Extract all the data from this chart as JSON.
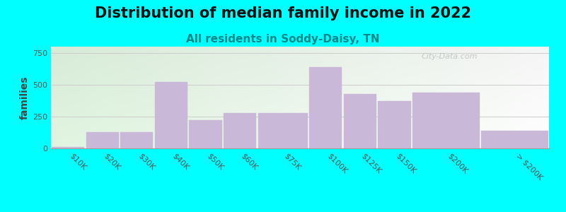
{
  "title": "Distribution of median family income in 2022",
  "subtitle": "All residents in Soddy-Daisy, TN",
  "ylabel": "families",
  "background_color": "#00FFFF",
  "bar_color": "#C9B8D8",
  "categories": [
    "$10K",
    "$20K",
    "$30K",
    "$40K",
    "$50K",
    "$60K",
    "$75K",
    "$100K",
    "$125K",
    "$150K",
    "$200K",
    "> $200K"
  ],
  "values": [
    10,
    130,
    130,
    520,
    220,
    280,
    280,
    640,
    430,
    370,
    440,
    140
  ],
  "bar_widths": [
    1,
    1,
    1,
    1,
    1,
    1,
    1.5,
    1,
    1,
    1,
    2,
    2
  ],
  "bar_lefts": [
    0,
    1,
    2,
    3,
    4,
    5,
    6,
    7.5,
    8.5,
    9.5,
    10.5,
    12.5
  ],
  "ylim": [
    0,
    800
  ],
  "yticks": [
    0,
    250,
    500,
    750
  ],
  "title_fontsize": 15,
  "subtitle_fontsize": 11,
  "subtitle_color": "#008888",
  "ylabel_fontsize": 10,
  "tick_fontsize": 8,
  "watermark_text": "City-Data.com"
}
